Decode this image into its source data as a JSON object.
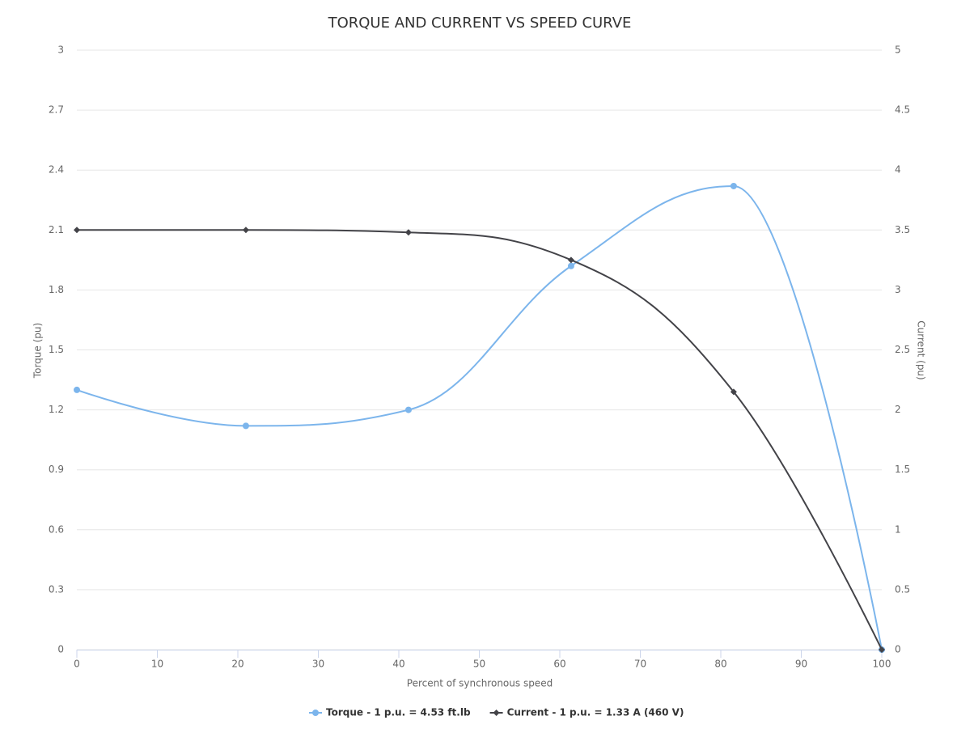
{
  "chart_data": {
    "type": "spline",
    "title": "TORQUE AND CURRENT VS SPEED CURVE",
    "x_label": "Percent of synchronous speed",
    "y_label": "Torque (pu)",
    "y2_label": "Current (pu)",
    "x": [
      0,
      21,
      41.2,
      61.4,
      81.6,
      100
    ],
    "series": [
      {
        "name": "Torque - 1 p.u. = 4.53 ft.lb",
        "color": "#7cb5ec",
        "marker": "circle",
        "values": [
          1.3,
          1.12,
          1.2,
          1.92,
          2.32,
          0
        ]
      },
      {
        "name": "Current - 1 p.u. = 1.33 A (460 V)",
        "color": "#434348",
        "marker": "diamond",
        "axis": "y2",
        "values": [
          3.5,
          3.5,
          3.48,
          3.25,
          2.15,
          0
        ]
      }
    ],
    "xlim": [
      0,
      100
    ],
    "xticks": [
      0,
      10,
      20,
      30,
      40,
      50,
      60,
      70,
      80,
      90,
      100
    ],
    "ylim": [
      0,
      3
    ],
    "yticks": [
      0,
      0.3,
      0.6,
      0.9,
      1.2,
      1.5,
      1.8,
      2.1,
      2.4,
      2.7,
      3
    ],
    "y2lim": [
      0,
      5
    ],
    "y2ticks": [
      0,
      0.5,
      1,
      1.5,
      2,
      2.5,
      3,
      3.5,
      4,
      4.5,
      5
    ],
    "grid": true,
    "legend": "bottom"
  }
}
